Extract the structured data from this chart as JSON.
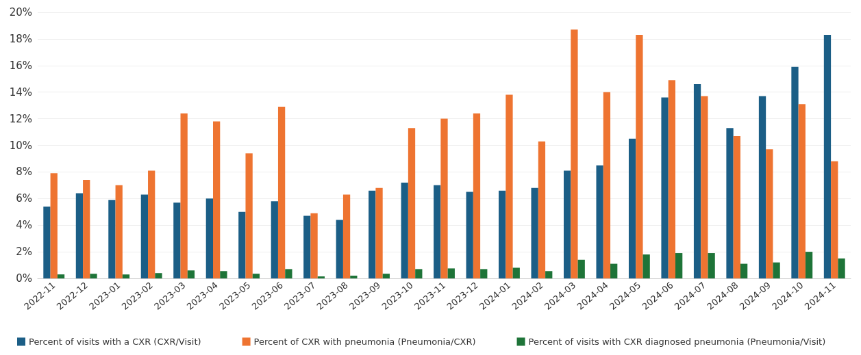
{
  "chart_data": {
    "type": "bar",
    "categories": [
      "2022-11",
      "2022-12",
      "2023-01",
      "2023-02",
      "2023-03",
      "2023-04",
      "2023-05",
      "2023-06",
      "2023-07",
      "2023-08",
      "2023-09",
      "2023-10",
      "2023-11",
      "2023-12",
      "2024-01",
      "2024-02",
      "2024-03",
      "2024-04",
      "2024-05",
      "2024-06",
      "2024-07",
      "2024-08",
      "2024-09",
      "2024-10",
      "2024-11"
    ],
    "series": [
      {
        "name": "Percent of visits with a CXR (CXR/Visit)",
        "color": "#1b5e86",
        "values": [
          5.4,
          6.4,
          5.9,
          6.3,
          5.7,
          6.0,
          5.0,
          5.8,
          4.7,
          4.4,
          6.6,
          7.2,
          7.0,
          6.5,
          6.6,
          6.8,
          8.1,
          8.5,
          10.5,
          13.6,
          14.6,
          11.3,
          13.7,
          15.9,
          18.3
        ]
      },
      {
        "name": "Percent of CXR with pneumonia (Pneumonia/CXR)",
        "color": "#ee7431",
        "values": [
          7.9,
          7.4,
          7.0,
          8.1,
          12.4,
          11.8,
          9.4,
          12.9,
          4.9,
          6.3,
          6.8,
          11.3,
          12.0,
          12.4,
          13.8,
          10.3,
          18.7,
          14.0,
          18.3,
          14.9,
          13.7,
          10.7,
          9.7,
          13.1,
          8.8
        ]
      },
      {
        "name": "Percent of visits with CXR diagnosed pneumonia (Pneumonia/Visit)",
        "color": "#1e7438",
        "values": [
          0.3,
          0.35,
          0.3,
          0.4,
          0.6,
          0.55,
          0.35,
          0.7,
          0.15,
          0.2,
          0.35,
          0.7,
          0.75,
          0.7,
          0.8,
          0.55,
          1.4,
          1.1,
          1.8,
          1.9,
          1.9,
          1.1,
          1.2,
          2.0,
          1.5
        ]
      }
    ],
    "ylim": [
      0,
      20
    ],
    "yticks": [
      {
        "value": 0,
        "label": "0%"
      },
      {
        "value": 2,
        "label": "2%"
      },
      {
        "value": 4,
        "label": "4%"
      },
      {
        "value": 6,
        "label": "6%"
      },
      {
        "value": 8,
        "label": "8%"
      },
      {
        "value": 10,
        "label": "10%"
      },
      {
        "value": 12,
        "label": "12%"
      },
      {
        "value": 14,
        "label": "14%"
      },
      {
        "value": 16,
        "label": "16%"
      },
      {
        "value": 18,
        "label": "18%"
      },
      {
        "value": 20,
        "label": "20%"
      }
    ],
    "grid": "y",
    "legend": "bottom left"
  }
}
